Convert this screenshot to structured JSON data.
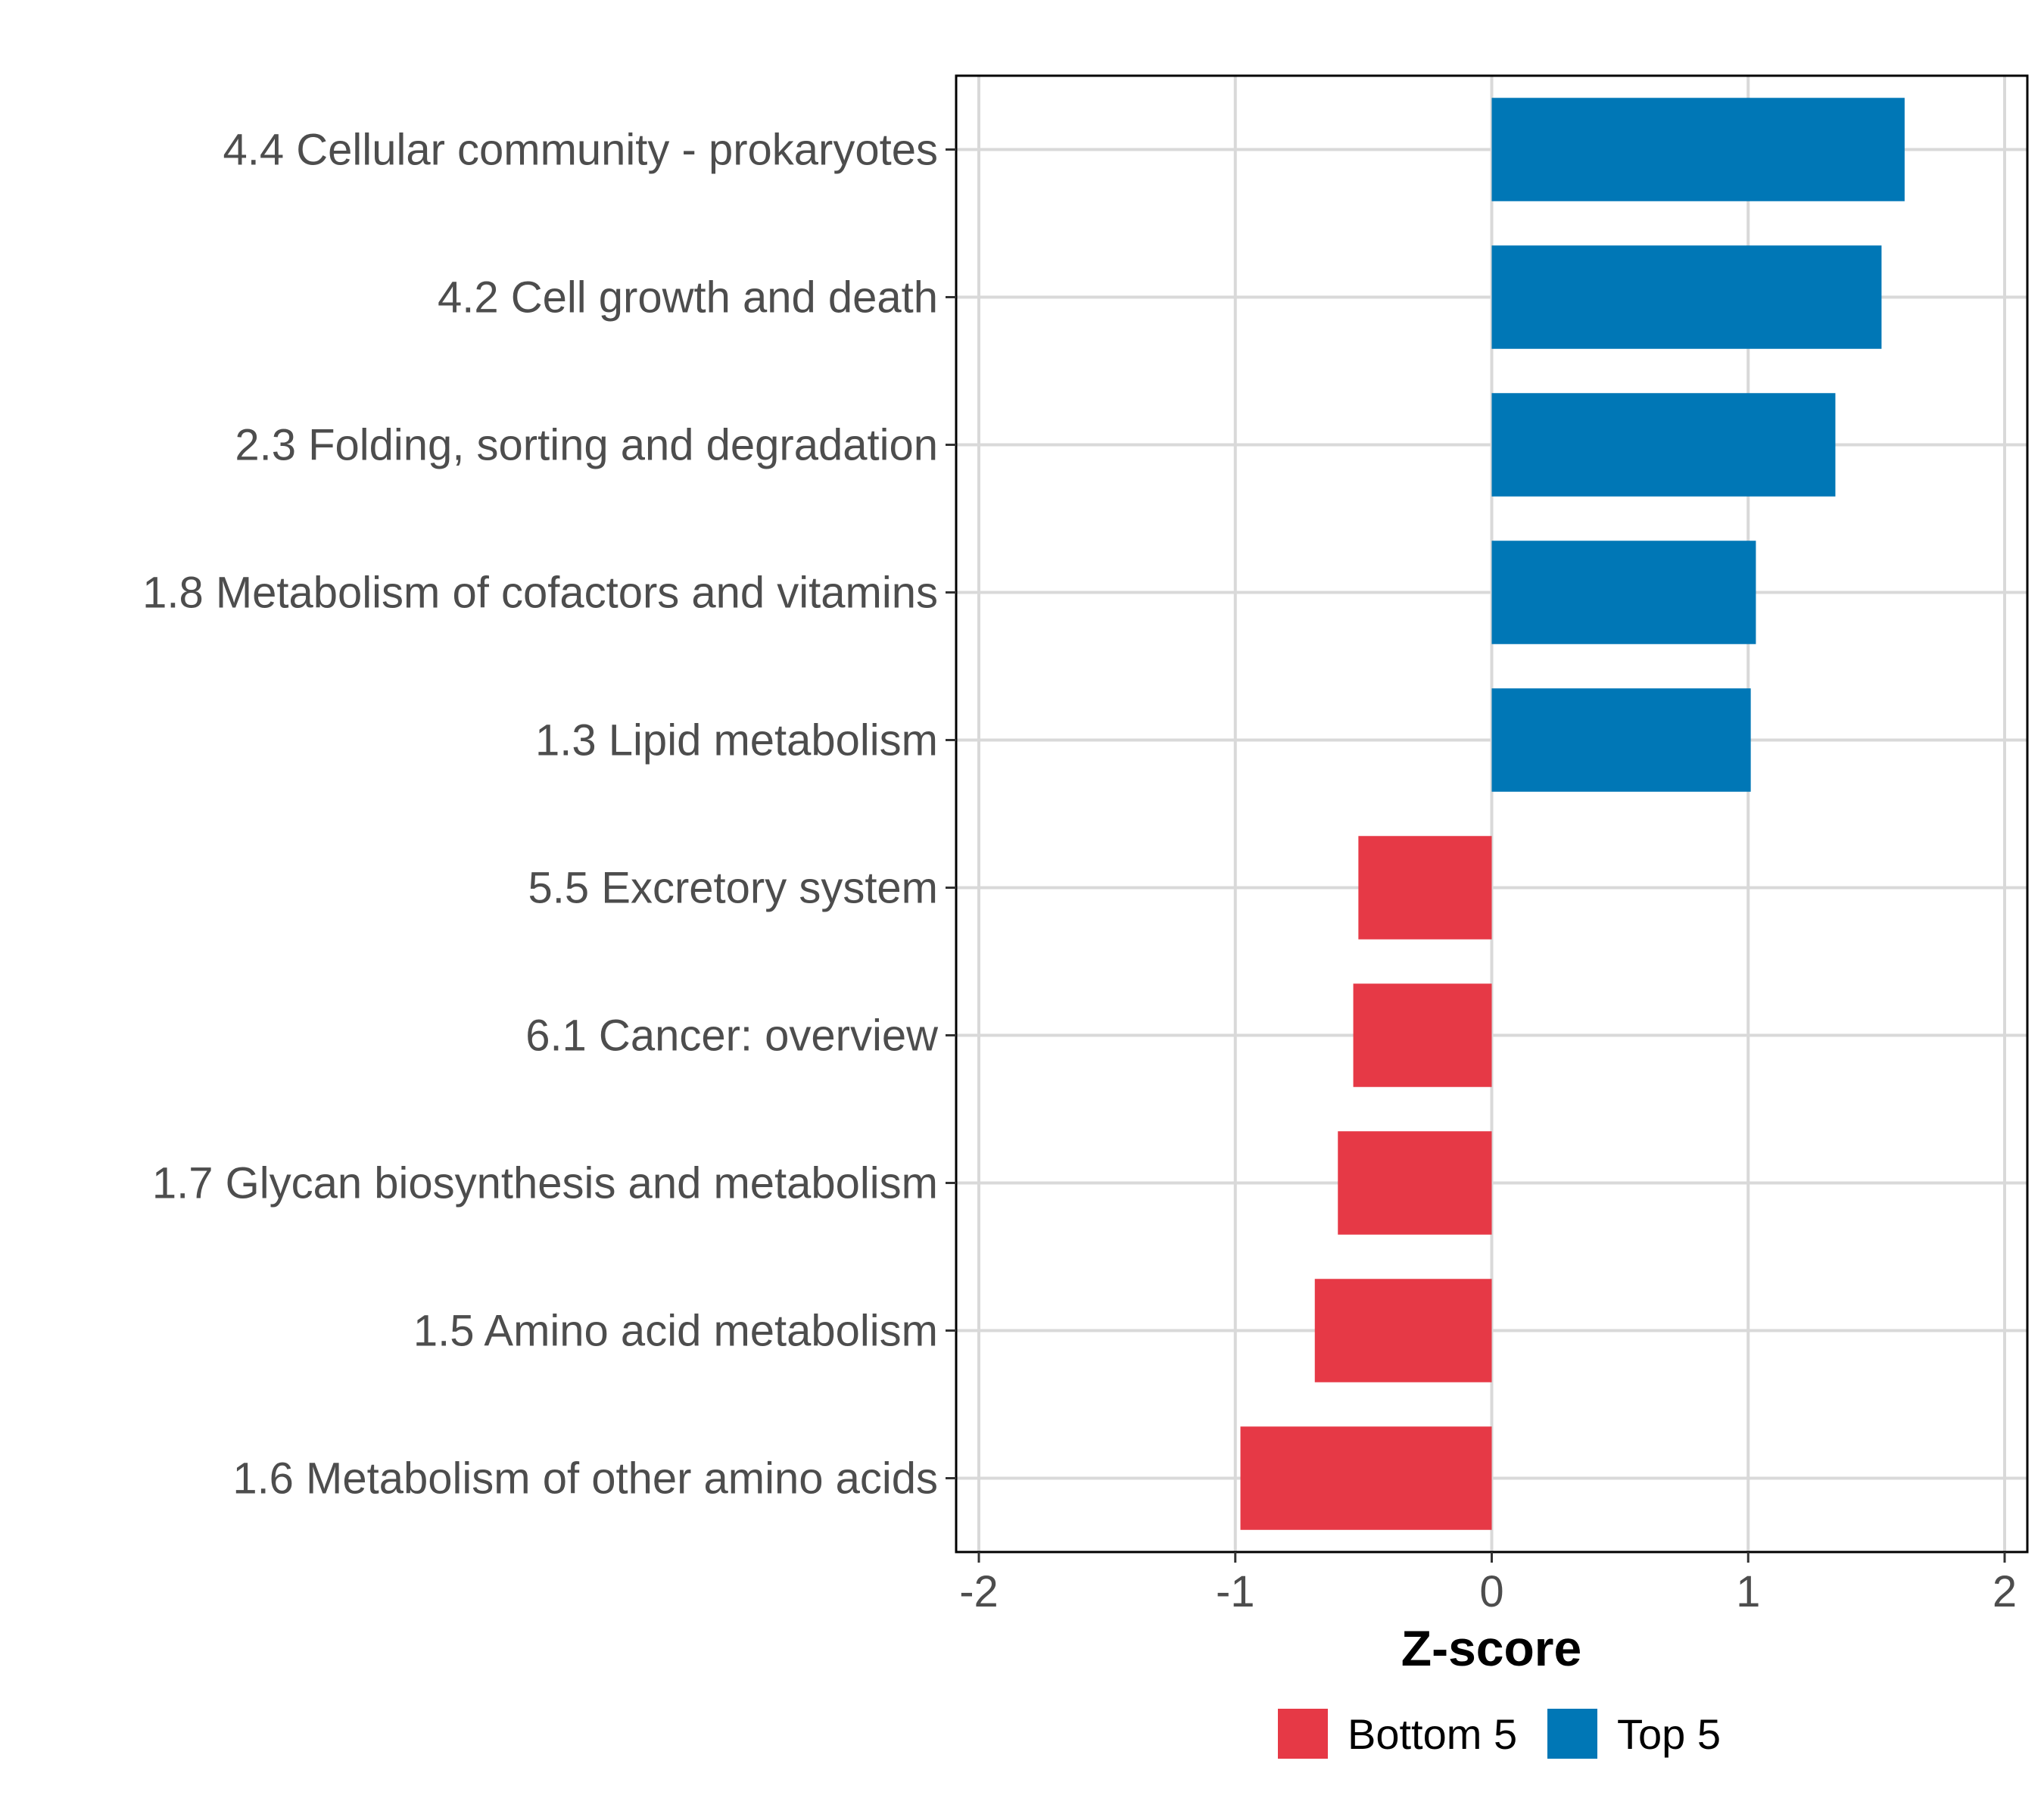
{
  "chart_data": {
    "type": "bar",
    "orientation": "horizontal",
    "title": "",
    "xlabel": "Z-score",
    "ylabel": "",
    "xlim": [
      -2,
      2
    ],
    "xticks": [
      "-2",
      "-1",
      "0",
      "1",
      "2"
    ],
    "grid": true,
    "categories": [
      "4.4 Cellular community - prokaryotes",
      "4.2 Cell growth and death",
      "2.3 Folding, sorting and degradation",
      "1.8 Metabolism of cofactors and vitamins",
      "1.3 Lipid metabolism",
      "5.5 Excretory system",
      "6.1 Cancer: overview",
      "1.7 Glycan biosynthesis and metabolism",
      "1.5 Amino acid metabolism",
      "1.6 Metabolism of other amino acids"
    ],
    "values": [
      1.61,
      1.52,
      1.34,
      1.03,
      1.01,
      -0.52,
      -0.54,
      -0.6,
      -0.69,
      -0.98
    ],
    "groups": [
      "Top 5",
      "Top 5",
      "Top 5",
      "Top 5",
      "Top 5",
      "Bottom 5",
      "Bottom 5",
      "Bottom 5",
      "Bottom 5",
      "Bottom 5"
    ],
    "legend": {
      "position": "bottom",
      "items": [
        {
          "label": "Bottom 5",
          "color": "#E63946"
        },
        {
          "label": "Top 5",
          "color": "#0077B6"
        }
      ]
    }
  }
}
